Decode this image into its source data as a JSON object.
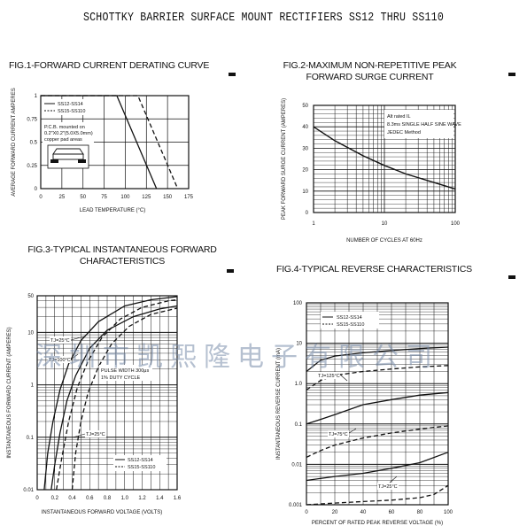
{
  "title": "SCHOTTKY BARRIER SURFACE MOUNT RECTIFIERS SS12 THRU SS110",
  "watermark": "深圳市凯熙隆电子有限公司",
  "chart_data": [
    {
      "type": "line",
      "title": "FIG.1-FORWARD CURRENT DERATING CURVE",
      "xlabel": "LEAD TEMPERATURE (°C)",
      "ylabel": "AVERAGE FORWARD CURRENT AMPERES",
      "xlim": [
        0,
        175
      ],
      "ylim": [
        0,
        1.0
      ],
      "xticks": [
        "0",
        "25",
        "50",
        "75",
        "100",
        "125",
        "150",
        "175"
      ],
      "yticks": [
        "0",
        "0.25",
        "0.5",
        "0.75",
        "1"
      ],
      "legend": [
        "SS12-SS14",
        "SS15-SS110"
      ],
      "note_lines": [
        "P.C.B. mounted on",
        "0.2\"X0.2\"(5.0X5.0mm)",
        "copper pad areas"
      ],
      "series": [
        {
          "name": "SS12-SS14",
          "style": "solid",
          "points": [
            [
              0,
              1.0
            ],
            [
              90,
              1.0
            ],
            [
              137,
              0
            ]
          ]
        },
        {
          "name": "SS15-SS110",
          "style": "dashed",
          "points": [
            [
              0,
              1.0
            ],
            [
              115,
              1.0
            ],
            [
              162,
              0
            ]
          ]
        }
      ]
    },
    {
      "type": "line",
      "title_lines": [
        "FIG.2-MAXIMUM NON-REPETITIVE PEAK",
        "FORWARD SURGE CURRENT"
      ],
      "xlabel": "NUMBER OF CYCLES AT 60Hz",
      "ylabel": "PEAK FORWARD SURGE CURRENT (AMPERES)",
      "xscale": "log",
      "xlim": [
        1,
        100
      ],
      "ylim": [
        0,
        50
      ],
      "xticks": [
        "1",
        "10",
        "100"
      ],
      "yticks": [
        "0",
        "10",
        "20",
        "30",
        "40",
        "50"
      ],
      "note_lines": [
        "Alt rated IL",
        "8.3ms SINGLE HALF SINE WAVE",
        "JEDEC Method"
      ],
      "series": [
        {
          "name": "",
          "x": [
            1,
            2,
            5,
            10,
            20,
            50,
            100
          ],
          "y": [
            40,
            33.5,
            26.5,
            22,
            18,
            14,
            11
          ]
        }
      ]
    },
    {
      "type": "line",
      "title_lines": [
        "FIG.3-TYPICAL INSTANTANEOUS FORWARD",
        "CHARACTERISTICS"
      ],
      "xlabel": "INSTANTANEOUS FORWARD VOLTAGE (VOLTS)",
      "ylabel": "INSTANTANEOUS FORWARD CURRENT (AMPERES)",
      "yscale": "log",
      "xlim": [
        0,
        1.6
      ],
      "ylim": [
        0.01,
        50
      ],
      "xticks": [
        "0",
        "0.1",
        "0.2",
        "0.3",
        "0.4",
        "0.5",
        "0.6",
        "0.7",
        "0.8",
        "0.9",
        "1.0",
        "1.1",
        "1.2",
        "1.3",
        "1.4",
        "1.5",
        "1.6"
      ],
      "yticks": [
        "0.01",
        "0.1",
        "1",
        "10",
        "50"
      ],
      "notes": [
        "PULSE WIDTH 300μs",
        "1% DUTY CYCLE"
      ],
      "annotations": [
        "TJ=25°C",
        "TJ=100°C",
        "TJ=25°C"
      ],
      "legend": [
        "SS12-SS14",
        "SS15-SS110"
      ],
      "series": [
        {
          "name": "SS12-SS14",
          "label": "TJ=25°C",
          "style": "solid",
          "x": [
            0.16,
            0.2,
            0.26,
            0.34,
            0.44,
            0.6,
            0.8,
            1.1,
            1.4,
            1.6
          ],
          "y": [
            0.01,
            0.03,
            0.12,
            0.5,
            1.5,
            5,
            11,
            20,
            28,
            32
          ]
        },
        {
          "name": "SS15-SS110",
          "label": "TJ=25°C",
          "style": "dashed",
          "x": [
            0.4,
            0.44,
            0.5,
            0.58,
            0.7,
            0.85,
            1.05,
            1.3,
            1.6
          ],
          "y": [
            0.01,
            0.05,
            0.2,
            0.7,
            2.2,
            6,
            13,
            22,
            29
          ]
        },
        {
          "name": "SS12-SS14",
          "label": "TJ=100°C",
          "style": "solid",
          "x": [
            0.08,
            0.12,
            0.18,
            0.26,
            0.36,
            0.5,
            0.7,
            1.0,
            1.3,
            1.6
          ],
          "y": [
            0.01,
            0.05,
            0.2,
            0.8,
            2.5,
            7,
            16,
            32,
            42,
            48
          ]
        },
        {
          "name": "SS15-SS110",
          "label": "TJ=100°C",
          "style": "dashed",
          "x": [
            0.22,
            0.28,
            0.36,
            0.46,
            0.58,
            0.74,
            0.95,
            1.2,
            1.5,
            1.6
          ],
          "y": [
            0.01,
            0.04,
            0.2,
            0.9,
            2.8,
            8,
            18,
            30,
            40,
            42
          ]
        }
      ]
    },
    {
      "type": "line",
      "title": "FIG.4-TYPICAL REVERSE CHARACTERISTICS",
      "xlabel": "PERCENT OF RATED PEAK REVERSE VOLTAGE (%)",
      "ylabel": "INSTANTANEOUS REVERSE CURRENT (mA)",
      "yscale": "log",
      "xlim": [
        0,
        100
      ],
      "ylim": [
        0.001,
        100
      ],
      "xticks": [
        "0",
        "20",
        "40",
        "60",
        "80",
        "100"
      ],
      "yticks": [
        "0.001",
        "0.01",
        "0.1",
        "1.0",
        "10",
        "100"
      ],
      "legend": [
        "SS12-SS14",
        "SS15-SS110"
      ],
      "annotations": [
        "TJ=125°C",
        "TJ=75°C",
        "TJ=25°C"
      ],
      "series": [
        {
          "name": "SS12-SS14",
          "label": "TJ=125°C",
          "style": "solid",
          "x": [
            0,
            10,
            20,
            40,
            60,
            80,
            100
          ],
          "y": [
            2.0,
            3.8,
            4.8,
            5.8,
            6.6,
            7.4,
            8.0
          ]
        },
        {
          "name": "SS15-SS110",
          "label": "TJ=125°C",
          "style": "dashed",
          "x": [
            0,
            10,
            20,
            40,
            60,
            80,
            100
          ],
          "y": [
            0.7,
            1.2,
            1.6,
            2.0,
            2.3,
            2.6,
            2.8
          ]
        },
        {
          "name": "SS12-SS14",
          "label": "TJ=75°C",
          "style": "solid",
          "x": [
            0,
            10,
            20,
            40,
            60,
            80,
            100
          ],
          "y": [
            0.1,
            0.13,
            0.17,
            0.3,
            0.4,
            0.52,
            0.6
          ]
        },
        {
          "name": "SS15-SS110",
          "label": "TJ=75°C",
          "style": "dashed",
          "x": [
            0,
            10,
            20,
            40,
            60,
            80,
            100
          ],
          "y": [
            0.015,
            0.022,
            0.03,
            0.045,
            0.06,
            0.075,
            0.09
          ]
        },
        {
          "name": "SS12-SS14",
          "label": "TJ=25°C",
          "style": "solid",
          "x": [
            0,
            20,
            40,
            60,
            80,
            100
          ],
          "y": [
            0.004,
            0.005,
            0.006,
            0.008,
            0.011,
            0.02
          ]
        },
        {
          "name": "SS15-SS110",
          "label": "TJ=25°C",
          "style": "dashed",
          "x": [
            0,
            20,
            40,
            60,
            80,
            90,
            100
          ],
          "y": [
            0.001,
            0.0011,
            0.0012,
            0.0013,
            0.0015,
            0.0018,
            0.003
          ]
        }
      ]
    }
  ]
}
